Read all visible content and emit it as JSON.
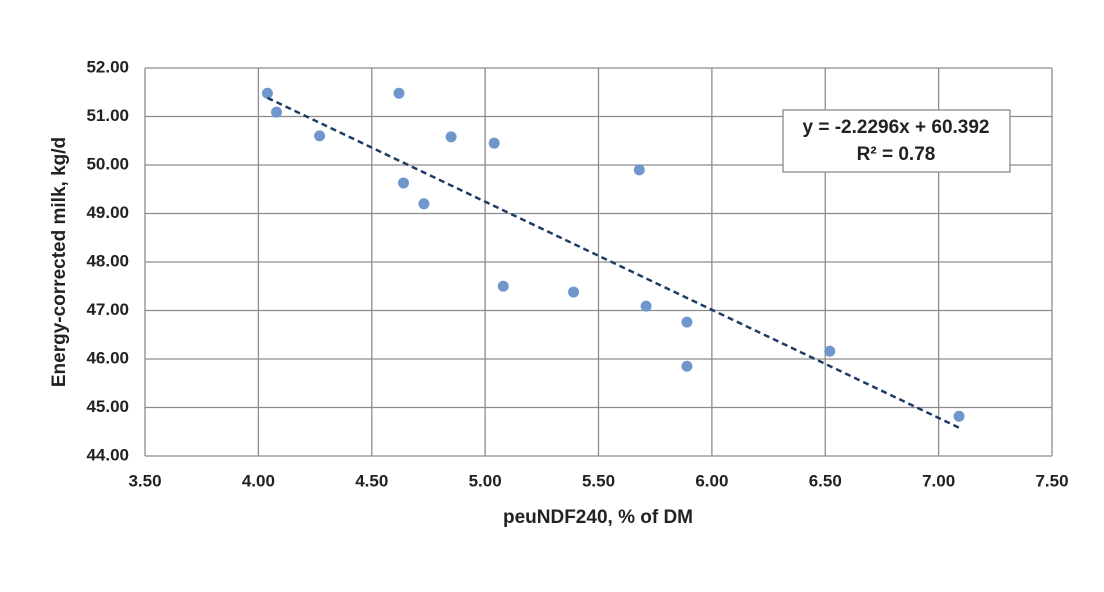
{
  "chart_data": {
    "type": "scatter",
    "x_label": "peuNDF240, % of DM",
    "y_label": "Energy-corrected milk, kg/d",
    "series": [
      {
        "color": "#6f97cc",
        "x": [
          4.04,
          4.08,
          4.27,
          4.62,
          4.64,
          4.73,
          4.85,
          5.04,
          5.08,
          5.39,
          5.68,
          5.71,
          5.89,
          5.89,
          6.52,
          7.09
        ],
        "values": [
          51.48,
          51.09,
          50.6,
          51.48,
          49.63,
          49.2,
          50.58,
          50.45,
          47.5,
          47.38,
          49.9,
          47.09,
          46.76,
          45.85,
          46.16,
          44.82
        ]
      }
    ],
    "trendline": {
      "equation": "y = -2.2296x + 60.392",
      "r2": "R² = 0.78",
      "slope": -2.2296,
      "intercept": 60.392,
      "color": "#1f3c64"
    },
    "xlim": [
      3.5,
      7.5
    ],
    "xticks": [
      {
        "value": 3.5,
        "label": "3.50"
      },
      {
        "value": 4,
        "label": "4.00"
      },
      {
        "value": 4.5,
        "label": "4.50"
      },
      {
        "value": 5,
        "label": "5.00"
      },
      {
        "value": 5.5,
        "label": "5.50"
      },
      {
        "value": 6,
        "label": "6.00"
      },
      {
        "value": 6.5,
        "label": "6.50"
      },
      {
        "value": 7,
        "label": "7.00"
      },
      {
        "value": 7.5,
        "label": "7.50"
      }
    ],
    "ylim": [
      44,
      52
    ],
    "yticks": [
      {
        "value": 44,
        "label": "44.00"
      },
      {
        "value": 45,
        "label": "45.00"
      },
      {
        "value": 46,
        "label": "46.00"
      },
      {
        "value": 47,
        "label": "47.00"
      },
      {
        "value": 48,
        "label": "48.00"
      },
      {
        "value": 49,
        "label": "49.00"
      },
      {
        "value": 50,
        "label": "50.00"
      },
      {
        "value": 51,
        "label": "51.00"
      },
      {
        "value": 52,
        "label": "52.00"
      }
    ],
    "grid": true
  }
}
